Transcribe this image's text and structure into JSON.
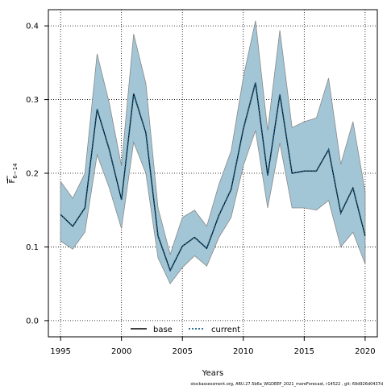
{
  "chart_data": {
    "type": "line",
    "xlabel": "Years",
    "ylabel": {
      "main": "F",
      "sub": "6−14"
    },
    "xlim": [
      1994,
      2021
    ],
    "ylim": [
      -0.022,
      0.422
    ],
    "x_ticks": [
      1995,
      2000,
      2005,
      2010,
      2015,
      2020
    ],
    "y_ticks": [
      0.0,
      0.1,
      0.2,
      0.3,
      0.4
    ],
    "grid": true,
    "legend_position": "bottom-center",
    "x": [
      1995,
      1996,
      1997,
      1998,
      1999,
      2000,
      2001,
      2002,
      2003,
      2004,
      2005,
      2006,
      2007,
      2008,
      2009,
      2010,
      2011,
      2012,
      2013,
      2014,
      2015,
      2016,
      2017,
      2018,
      2019,
      2020
    ],
    "band": {
      "upper": [
        0.189,
        0.166,
        0.2,
        0.362,
        0.295,
        0.21,
        0.389,
        0.322,
        0.153,
        0.09,
        0.14,
        0.15,
        0.128,
        0.185,
        0.23,
        0.33,
        0.407,
        0.258,
        0.394,
        0.262,
        0.27,
        0.275,
        0.329,
        0.212,
        0.27,
        0.175
      ],
      "lower": [
        0.108,
        0.097,
        0.12,
        0.225,
        0.18,
        0.125,
        0.242,
        0.2,
        0.085,
        0.05,
        0.072,
        0.088,
        0.074,
        0.113,
        0.14,
        0.21,
        0.258,
        0.153,
        0.241,
        0.153,
        0.153,
        0.15,
        0.163,
        0.1,
        0.12,
        0.077
      ],
      "fill": "#a3c6d6",
      "stroke": "#888888"
    },
    "series": [
      {
        "name": "base",
        "style": "solid",
        "color": "#000000",
        "values": [
          0.144,
          0.128,
          0.153,
          0.287,
          0.232,
          0.164,
          0.308,
          0.255,
          0.115,
          0.068,
          0.101,
          0.113,
          0.098,
          0.143,
          0.178,
          0.26,
          0.323,
          0.197,
          0.307,
          0.2,
          0.203,
          0.203,
          0.232,
          0.146,
          0.18,
          0.115
        ]
      },
      {
        "name": "current",
        "style": "dotted",
        "color": "#1a5f85",
        "values": [
          0.144,
          0.128,
          0.153,
          0.287,
          0.232,
          0.164,
          0.308,
          0.255,
          0.115,
          0.068,
          0.101,
          0.113,
          0.098,
          0.143,
          0.178,
          0.26,
          0.323,
          0.197,
          0.307,
          0.2,
          0.203,
          0.203,
          0.232,
          0.146,
          0.18,
          0.115
        ]
      }
    ],
    "footer": "stockassessment.org,  ARU.27.5b6a_WGDEEP_2021_moreForecast,  r14522 ,  git:  69d926d0437d"
  }
}
